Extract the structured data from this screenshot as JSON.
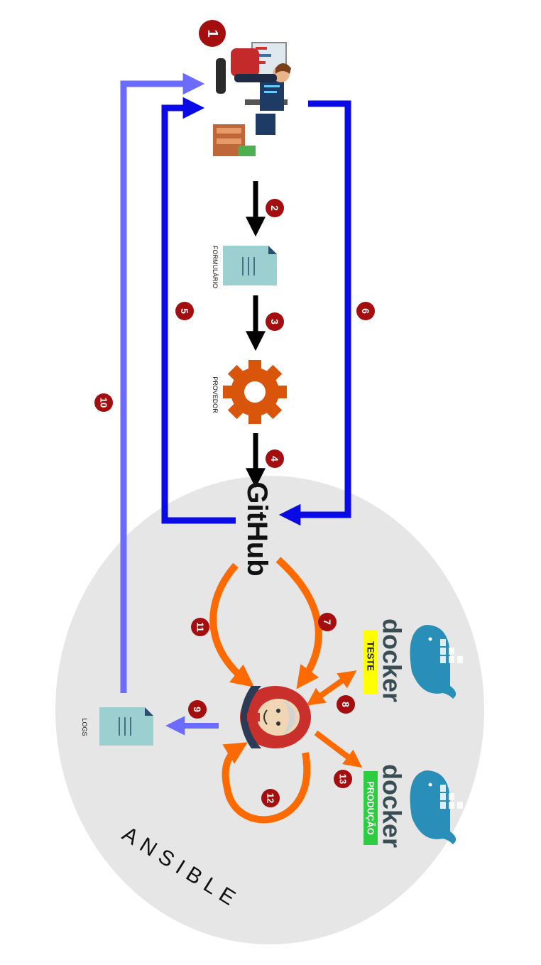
{
  "labels": {
    "formulario": "FORMULÁRIO",
    "provedor": "PROVEDOR",
    "github": "GitHub",
    "logs": "LOGS",
    "ansible": "ANSIBLE",
    "docker_word": "docker",
    "teste": "TESTE",
    "producao": "PRODUÇÃO"
  },
  "steps": [
    "1",
    "2",
    "3",
    "4",
    "5",
    "6",
    "7",
    "8",
    "9",
    "10",
    "11",
    "12",
    "13"
  ],
  "colors": {
    "step_badge": "#a50e0e",
    "blue_dark": "#0a0ae6",
    "blue_light": "#6b6bff",
    "orange": "#ff6a00",
    "gear": "#d9550b",
    "doc": "#9ccfd0",
    "ellipse": "#e6e6e6",
    "teste_bg": "#ffff00",
    "producao_bg": "#2ecc40",
    "docker_blue": "#2a8fb8",
    "docker_text": "#394d54"
  },
  "icons": [
    "developer-desk-icon",
    "document-icon",
    "gear-icon",
    "github-logo",
    "jenkins-icon",
    "docker-whale-icon"
  ]
}
